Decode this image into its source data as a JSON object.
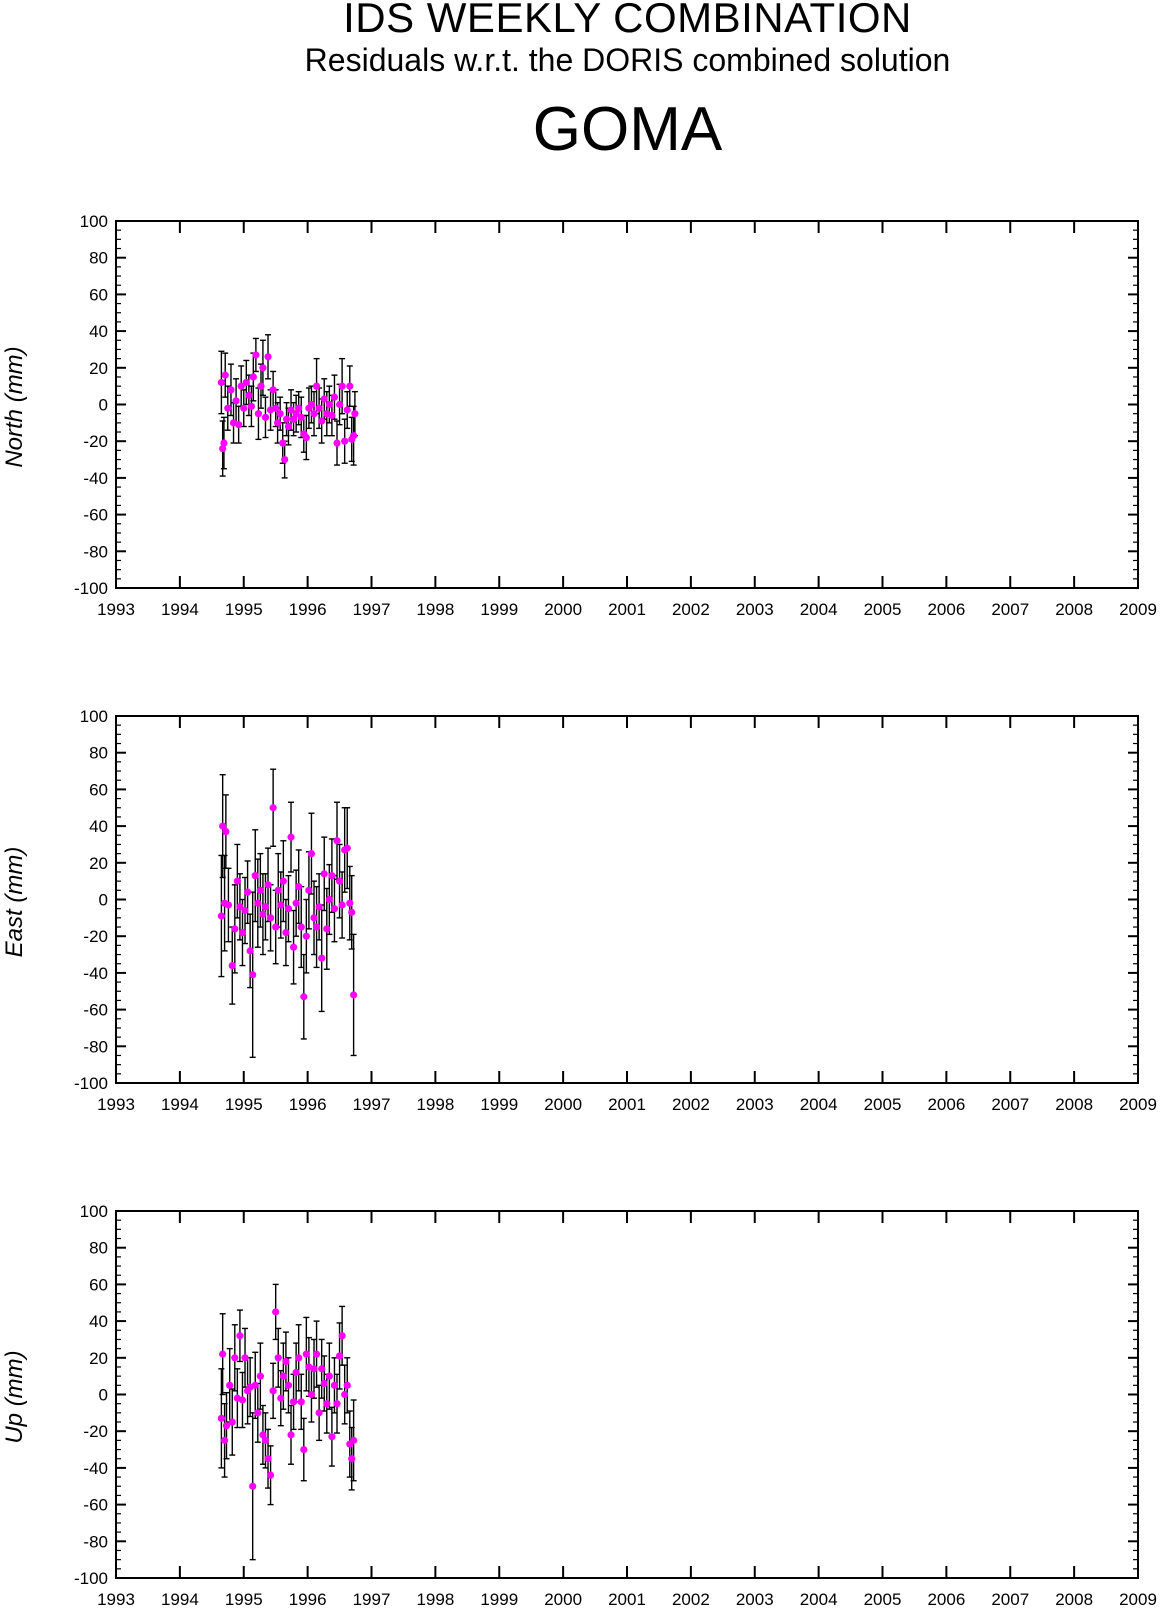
{
  "title": "IDS WEEKLY COMBINATION",
  "subtitle": "Residuals w.r.t. the DORIS combined solution",
  "station": "GOMA",
  "colors": {
    "point": "#ff00ff",
    "errorbar": "#000000",
    "axis": "#000000"
  },
  "chart_data": [
    {
      "type": "scatter",
      "ylabel": "North (mm)",
      "xlim": [
        1993,
        2009
      ],
      "ylim": [
        -100,
        100
      ],
      "xticks": [
        1993,
        1994,
        1995,
        1996,
        1997,
        1998,
        1999,
        2000,
        2001,
        2002,
        2003,
        2004,
        2005,
        2006,
        2007,
        2008,
        2009
      ],
      "yticks": [
        -100,
        -80,
        -60,
        -40,
        -20,
        0,
        20,
        40,
        60,
        80,
        100
      ],
      "grid": false,
      "points": [
        [
          1994.65,
          12,
          17
        ],
        [
          1994.67,
          -24,
          15
        ],
        [
          1994.69,
          -21,
          14
        ],
        [
          1994.71,
          16,
          12
        ],
        [
          1994.75,
          -2,
          12
        ],
        [
          1994.8,
          8,
          14
        ],
        [
          1994.84,
          -10,
          11
        ],
        [
          1994.88,
          2,
          12
        ],
        [
          1994.92,
          -11,
          10
        ],
        [
          1994.96,
          10,
          11
        ],
        [
          1995.0,
          -2,
          10
        ],
        [
          1995.04,
          12,
          12
        ],
        [
          1995.08,
          5,
          11
        ],
        [
          1995.12,
          -1,
          11
        ],
        [
          1995.15,
          15,
          13
        ],
        [
          1995.19,
          27,
          9
        ],
        [
          1995.23,
          -5,
          14
        ],
        [
          1995.27,
          10,
          12
        ],
        [
          1995.3,
          20,
          15
        ],
        [
          1995.34,
          -7,
          11
        ],
        [
          1995.38,
          26,
          12
        ],
        [
          1995.42,
          -3,
          11
        ],
        [
          1995.46,
          8,
          10
        ],
        [
          1995.5,
          -2,
          10
        ],
        [
          1995.53,
          -10,
          11
        ],
        [
          1995.57,
          -5,
          9
        ],
        [
          1995.61,
          -21,
          11
        ],
        [
          1995.64,
          -30,
          10
        ],
        [
          1995.67,
          -8,
          9
        ],
        [
          1995.7,
          -12,
          10
        ],
        [
          1995.74,
          -3,
          11
        ],
        [
          1995.78,
          -8,
          9
        ],
        [
          1995.82,
          -5,
          10
        ],
        [
          1995.86,
          -2,
          9
        ],
        [
          1995.9,
          -7,
          11
        ],
        [
          1995.94,
          -16,
          10
        ],
        [
          1995.98,
          -18,
          12
        ],
        [
          1996.02,
          -2,
          11
        ],
        [
          1996.06,
          0,
          10
        ],
        [
          1996.1,
          -5,
          12
        ],
        [
          1996.14,
          10,
          15
        ],
        [
          1996.18,
          -2,
          11
        ],
        [
          1996.22,
          -9,
          12
        ],
        [
          1996.26,
          3,
          11
        ],
        [
          1996.3,
          -5,
          12
        ],
        [
          1996.34,
          0,
          10
        ],
        [
          1996.38,
          -6,
          11
        ],
        [
          1996.42,
          4,
          12
        ],
        [
          1996.46,
          -21,
          12
        ],
        [
          1996.5,
          0,
          11
        ],
        [
          1996.54,
          10,
          15
        ],
        [
          1996.58,
          -20,
          12
        ],
        [
          1996.62,
          -3,
          10
        ],
        [
          1996.66,
          10,
          11
        ],
        [
          1996.69,
          -19,
          12
        ],
        [
          1996.72,
          -17,
          16
        ],
        [
          1996.74,
          -5,
          12
        ]
      ]
    },
    {
      "type": "scatter",
      "ylabel": "East (mm)",
      "xlim": [
        1993,
        2009
      ],
      "ylim": [
        -100,
        100
      ],
      "xticks": [
        1993,
        1994,
        1995,
        1996,
        1997,
        1998,
        1999,
        2000,
        2001,
        2002,
        2003,
        2004,
        2005,
        2006,
        2007,
        2008,
        2009
      ],
      "yticks": [
        -100,
        -80,
        -60,
        -40,
        -20,
        0,
        20,
        40,
        60,
        80,
        100
      ],
      "grid": false,
      "points": [
        [
          1994.65,
          -9,
          33
        ],
        [
          1994.67,
          40,
          28
        ],
        [
          1994.7,
          -2,
          26
        ],
        [
          1994.72,
          37,
          20
        ],
        [
          1994.76,
          -3,
          20
        ],
        [
          1994.82,
          -36,
          21
        ],
        [
          1994.86,
          -16,
          24
        ],
        [
          1994.9,
          10,
          20
        ],
        [
          1994.94,
          -4,
          18
        ],
        [
          1994.98,
          -18,
          18
        ],
        [
          1995.02,
          -6,
          18
        ],
        [
          1995.06,
          4,
          17
        ],
        [
          1995.1,
          -28,
          20
        ],
        [
          1995.14,
          -41,
          45
        ],
        [
          1995.18,
          13,
          25
        ],
        [
          1995.22,
          -2,
          24
        ],
        [
          1995.26,
          5,
          20
        ],
        [
          1995.3,
          -8,
          22
        ],
        [
          1995.34,
          -4,
          18
        ],
        [
          1995.38,
          8,
          20
        ],
        [
          1995.42,
          -10,
          18
        ],
        [
          1995.46,
          50,
          21
        ],
        [
          1995.5,
          -15,
          20
        ],
        [
          1995.54,
          5,
          20
        ],
        [
          1995.58,
          -3,
          18
        ],
        [
          1995.62,
          10,
          22
        ],
        [
          1995.66,
          -18,
          18
        ],
        [
          1995.7,
          -5,
          18
        ],
        [
          1995.74,
          34,
          19
        ],
        [
          1995.78,
          -26,
          20
        ],
        [
          1995.82,
          -2,
          18
        ],
        [
          1995.86,
          7,
          20
        ],
        [
          1995.9,
          -15,
          22
        ],
        [
          1995.94,
          -53,
          23
        ],
        [
          1995.98,
          -20,
          20
        ],
        [
          1996.02,
          5,
          21
        ],
        [
          1996.06,
          25,
          22
        ],
        [
          1996.1,
          -10,
          20
        ],
        [
          1996.14,
          -15,
          22
        ],
        [
          1996.18,
          -4,
          18
        ],
        [
          1996.22,
          -32,
          29
        ],
        [
          1996.26,
          14,
          20
        ],
        [
          1996.3,
          -16,
          22
        ],
        [
          1996.34,
          0,
          19
        ],
        [
          1996.38,
          13,
          20
        ],
        [
          1996.42,
          -5,
          18
        ],
        [
          1996.46,
          32,
          21
        ],
        [
          1996.5,
          10,
          20
        ],
        [
          1996.54,
          -3,
          18
        ],
        [
          1996.58,
          27,
          23
        ],
        [
          1996.62,
          28,
          22
        ],
        [
          1996.66,
          -2,
          20
        ],
        [
          1996.69,
          -7,
          20
        ],
        [
          1996.72,
          -52,
          33
        ]
      ]
    },
    {
      "type": "scatter",
      "ylabel": "Up (mm)",
      "xlim": [
        1993,
        2009
      ],
      "ylim": [
        -100,
        100
      ],
      "xticks": [
        1993,
        1994,
        1995,
        1996,
        1997,
        1998,
        1999,
        2000,
        2001,
        2002,
        2003,
        2004,
        2005,
        2006,
        2007,
        2008,
        2009
      ],
      "yticks": [
        -100,
        -80,
        -60,
        -40,
        -20,
        0,
        20,
        40,
        60,
        80,
        100
      ],
      "grid": false,
      "points": [
        [
          1994.65,
          -13,
          27
        ],
        [
          1994.67,
          22,
          22
        ],
        [
          1994.7,
          -25,
          20
        ],
        [
          1994.73,
          -17,
          18
        ],
        [
          1994.78,
          5,
          20
        ],
        [
          1994.82,
          -15,
          18
        ],
        [
          1994.86,
          20,
          18
        ],
        [
          1994.9,
          -2,
          16
        ],
        [
          1994.94,
          32,
          14
        ],
        [
          1994.98,
          -3,
          15
        ],
        [
          1995.02,
          20,
          16
        ],
        [
          1995.06,
          2,
          18
        ],
        [
          1995.1,
          4,
          16
        ],
        [
          1995.14,
          -50,
          40
        ],
        [
          1995.18,
          5,
          18
        ],
        [
          1995.22,
          -10,
          16
        ],
        [
          1995.26,
          10,
          18
        ],
        [
          1995.3,
          -22,
          16
        ],
        [
          1995.34,
          -25,
          15
        ],
        [
          1995.38,
          -35,
          16
        ],
        [
          1995.42,
          -44,
          16
        ],
        [
          1995.46,
          2,
          15
        ],
        [
          1995.5,
          45,
          15
        ],
        [
          1995.54,
          20,
          16
        ],
        [
          1995.58,
          -2,
          15
        ],
        [
          1995.62,
          10,
          18
        ],
        [
          1995.66,
          18,
          16
        ],
        [
          1995.7,
          5,
          15
        ],
        [
          1995.74,
          -22,
          16
        ],
        [
          1995.78,
          -4,
          15
        ],
        [
          1995.82,
          12,
          16
        ],
        [
          1995.86,
          20,
          18
        ],
        [
          1995.9,
          -4,
          15
        ],
        [
          1995.94,
          -30,
          17
        ],
        [
          1995.98,
          22,
          20
        ],
        [
          1996.02,
          15,
          16
        ],
        [
          1996.06,
          0,
          15
        ],
        [
          1996.1,
          14,
          16
        ],
        [
          1996.14,
          22,
          18
        ],
        [
          1996.18,
          -10,
          15
        ],
        [
          1996.22,
          14,
          16
        ],
        [
          1996.26,
          6,
          15
        ],
        [
          1996.3,
          -5,
          16
        ],
        [
          1996.34,
          10,
          18
        ],
        [
          1996.38,
          -23,
          16
        ],
        [
          1996.42,
          5,
          15
        ],
        [
          1996.46,
          -5,
          16
        ],
        [
          1996.5,
          21,
          18
        ],
        [
          1996.54,
          32,
          16
        ],
        [
          1996.58,
          0,
          16
        ],
        [
          1996.62,
          5,
          15
        ],
        [
          1996.66,
          -27,
          18
        ],
        [
          1996.69,
          -35,
          17
        ],
        [
          1996.72,
          -25,
          22
        ]
      ]
    }
  ]
}
